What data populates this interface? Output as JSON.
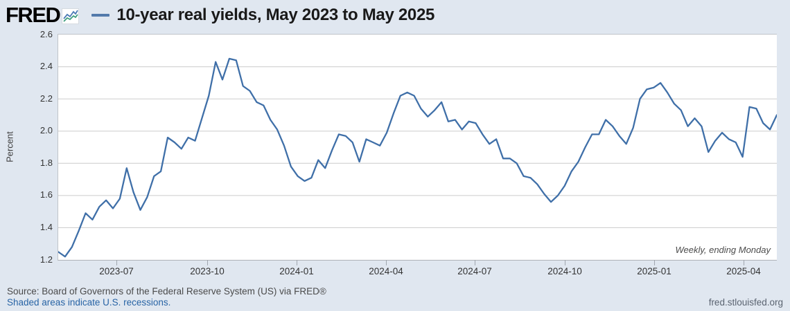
{
  "header": {
    "logo_text": "FRED",
    "logo_icon": "sparkline-chart-icon",
    "title": "10-year real yields, May 2023 to May 2025"
  },
  "annotations": {
    "frequency_note": "Weekly, ending Monday"
  },
  "footer": {
    "source_line": "Source: Board of Governors of the Federal Reserve System (US) via FRED®",
    "recession_note": "Shaded areas indicate U.S. recessions.",
    "site_link": "fred.stlouisfed.org"
  },
  "colors": {
    "background": "#e0e7f0",
    "plot_background": "#ffffff",
    "line": "#3f6fa8",
    "gridline": "#cccccc",
    "legend_dash": "#537aab",
    "link": "#2864a5"
  },
  "chart_data": {
    "type": "line",
    "title": "10-year real yields, May 2023 to May 2025",
    "ylabel": "Percent",
    "xlabel": "",
    "ylim": [
      1.2,
      2.6
    ],
    "y_ticks": [
      "2.6",
      "2.4",
      "2.2",
      "2.0",
      "1.8",
      "1.6",
      "1.4",
      "1.2"
    ],
    "grid": "horizontal",
    "frequency_note": "Weekly, ending Monday",
    "x_range": [
      "2023-05-01",
      "2025-05-12"
    ],
    "x_ticks": [
      {
        "label": "2023-07",
        "pos": 0.082
      },
      {
        "label": "2023-10",
        "pos": 0.2083
      },
      {
        "label": "2024-01",
        "pos": 0.3327
      },
      {
        "label": "2024-04",
        "pos": 0.4571
      },
      {
        "label": "2024-07",
        "pos": 0.5806
      },
      {
        "label": "2024-10",
        "pos": 0.7059
      },
      {
        "label": "2025-01",
        "pos": 0.8303
      },
      {
        "label": "2025-04",
        "pos": 0.9547
      }
    ],
    "series": [
      {
        "name": "10-year real yields",
        "color": "#3f6fa8",
        "frequency": "weekly",
        "values": [
          1.25,
          1.22,
          1.28,
          1.38,
          1.49,
          1.45,
          1.53,
          1.57,
          1.52,
          1.58,
          1.77,
          1.62,
          1.51,
          1.59,
          1.72,
          1.75,
          1.96,
          1.93,
          1.89,
          1.96,
          1.94,
          2.08,
          2.22,
          2.43,
          2.32,
          2.45,
          2.44,
          2.28,
          2.25,
          2.18,
          2.16,
          2.07,
          2.01,
          1.91,
          1.78,
          1.72,
          1.69,
          1.71,
          1.82,
          1.77,
          1.88,
          1.98,
          1.97,
          1.93,
          1.81,
          1.95,
          1.93,
          1.91,
          1.99,
          2.11,
          2.22,
          2.24,
          2.22,
          2.14,
          2.09,
          2.13,
          2.18,
          2.06,
          2.07,
          2.01,
          2.06,
          2.05,
          1.98,
          1.92,
          1.95,
          1.83,
          1.83,
          1.8,
          1.72,
          1.71,
          1.67,
          1.61,
          1.56,
          1.6,
          1.66,
          1.75,
          1.81,
          1.9,
          1.98,
          1.98,
          2.07,
          2.03,
          1.97,
          1.92,
          2.02,
          2.2,
          2.26,
          2.27,
          2.3,
          2.24,
          2.17,
          2.13,
          2.03,
          2.08,
          2.03,
          1.87,
          1.94,
          1.99,
          1.95,
          1.93,
          1.84,
          2.15,
          2.14,
          2.05,
          2.01,
          2.1
        ]
      }
    ]
  }
}
